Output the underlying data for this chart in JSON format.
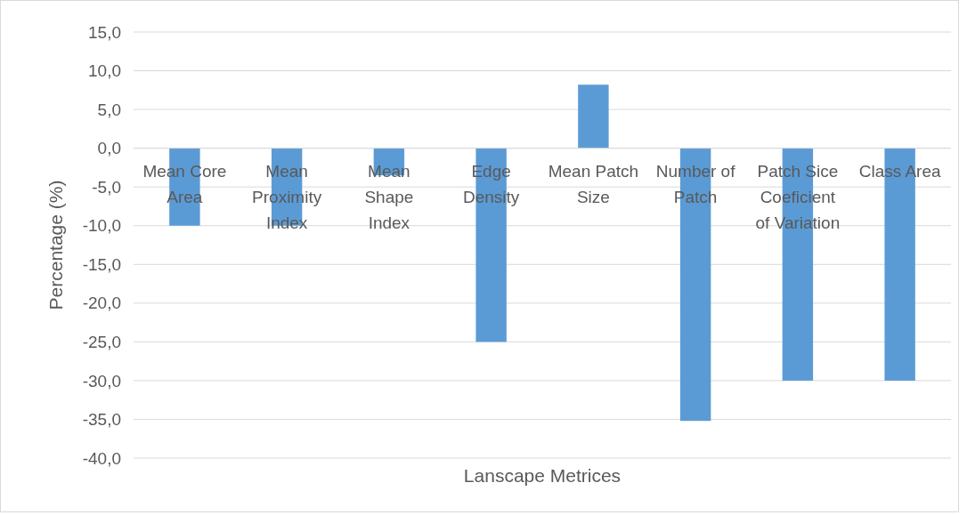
{
  "chart_data": {
    "type": "bar",
    "xlabel": "Lanscape Metrices",
    "ylabel": "Percentage (%)",
    "categories": [
      "Mean Core Area",
      "Mean Proximity Index",
      "Mean Shape Index",
      "Edge Density",
      "Mean Patch Size",
      "Number of Patch",
      "Patch Sice Coeficient of Variation",
      "Class Area"
    ],
    "values": [
      -10.0,
      -10.0,
      -3.5,
      -25.0,
      8.2,
      -35.2,
      -30.0,
      -30.0
    ],
    "color": "#5b9bd5",
    "ylim": [
      -40,
      15
    ],
    "yticks": [
      {
        "value": 15,
        "label": "15,0"
      },
      {
        "value": 10,
        "label": "10,0"
      },
      {
        "value": 5,
        "label": "5,0"
      },
      {
        "value": 0,
        "label": "0,0"
      },
      {
        "value": -5,
        "label": "-5,0"
      },
      {
        "value": -10,
        "label": "-10,0"
      },
      {
        "value": -15,
        "label": "-15,0"
      },
      {
        "value": -20,
        "label": "-20,0"
      },
      {
        "value": -25,
        "label": "-25,0"
      },
      {
        "value": -30,
        "label": "-30,0"
      },
      {
        "value": -35,
        "label": "-35,0"
      },
      {
        "value": -40,
        "label": "-40,0"
      }
    ],
    "grid": "y"
  }
}
